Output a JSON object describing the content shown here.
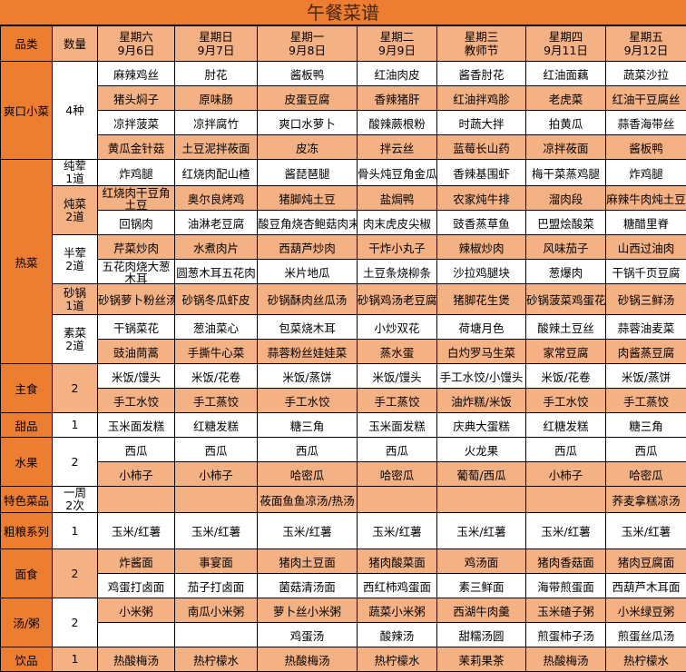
{
  "title": "午餐菜谱",
  "colors": {
    "category": "#ED7D31",
    "light": "#F4B183",
    "white": "#FFFFFF",
    "border": "#000000"
  },
  "headers": {
    "category": "品类",
    "quantity": "数量",
    "days": [
      "星期六\n9月6日",
      "星期日\n9月7日",
      "星期一\n9月8日",
      "星期二\n9月9日",
      "星期三\n教师节",
      "星期四\n9月11日",
      "星期五\n9月12日"
    ]
  },
  "sections": [
    {
      "category": "爽口小菜",
      "groups": [
        {
          "qty": "4种",
          "shade": "white",
          "rows": [
            {
              "shade": "white",
              "cells": [
                "麻辣鸡丝",
                "肘花",
                "酱板鸭",
                "红油肉皮",
                "酱香肘花",
                "红油面藕",
                "蔬菜沙拉"
              ]
            },
            {
              "shade": "light",
              "cells": [
                "猪头焖子",
                "原味肠",
                "皮蛋豆腐",
                "香辣猪肝",
                "红油拌鸡胗",
                "老虎菜",
                "红油干豆腐丝"
              ]
            },
            {
              "shade": "white",
              "cells": [
                "凉拌菠菜",
                "凉拌腐竹",
                "爽口水萝卜",
                "酸辣蕨根粉",
                "时蔬大拌",
                "拍黄瓜",
                "蒜香海带丝"
              ]
            },
            {
              "shade": "light",
              "cells": [
                "黄瓜金针菇",
                "土豆泥拌莜面",
                "皮冻",
                "拌云丝",
                "蓝莓长山药",
                "凉拌莜面",
                "酱板鸭"
              ]
            }
          ]
        }
      ]
    },
    {
      "category": "热菜",
      "groups": [
        {
          "qty": "纯荤\n1道",
          "shade": "white",
          "rows": [
            {
              "shade": "white",
              "cells": [
                "炸鸡腿",
                "红烧肉配山楂",
                "酱琵琶腿",
                "骨头炖豆角金瓜玉",
                "香辣基围虾",
                "梅干菜蒸鸡腿",
                "炸鸡腿"
              ]
            }
          ]
        },
        {
          "qty": "炖菜\n2道",
          "shade": "light",
          "rows": [
            {
              "shade": "light",
              "cells": [
                "红烧肉干豆角土豆",
                "奥尔良烤鸡",
                "猪脚炖土豆",
                "盐焗鸭",
                "农家炖牛排",
                "溜肉段",
                "麻辣牛肉炖土豆"
              ]
            },
            {
              "shade": "white",
              "cells": [
                "回锅肉",
                "油淋老豆腐",
                "酸豆角烧杏鲍菇肉末",
                "肉末虎皮尖椒",
                "豉香蒸草鱼",
                "巴盟烩酸菜",
                "糖醋里脊"
              ]
            }
          ]
        },
        {
          "qty": "半荤\n2道",
          "shade": "white",
          "rows": [
            {
              "shade": "light",
              "cells": [
                "芹菜炒肉",
                "水煮肉片",
                "西葫芦炒肉",
                "干炸小丸子",
                "辣椒炒肉",
                "风味茄子",
                "山西过油肉"
              ]
            },
            {
              "shade": "white",
              "cells": [
                "五花肉烧大葱木耳",
                "圆葱木耳五花肉",
                "米片地瓜",
                "土豆条烧柳条",
                "沙拉鸡腿块",
                "葱爆肉",
                "干锅千页豆腐"
              ]
            }
          ]
        },
        {
          "qty": "砂锅\n1道",
          "shade": "light",
          "rows": [
            {
              "shade": "light",
              "cells": [
                "砂锅萝卜粉丝汤",
                "砂锅冬瓜虾皮",
                "砂锅酥肉丝瓜汤",
                "砂锅鸡汤老豆腐",
                "猪脚花生煲",
                "砂锅菠菜鸡蛋花",
                "砂锅三鲜汤"
              ]
            }
          ]
        },
        {
          "qty": "素菜\n2道",
          "shade": "white",
          "rows": [
            {
              "shade": "white",
              "cells": [
                "干锅菜花",
                "葱油菜心",
                "包菜烧木耳",
                "小炒双花",
                "荷塘月色",
                "酸辣土豆丝",
                "蒜蓉油麦菜"
              ]
            },
            {
              "shade": "light",
              "cells": [
                "豉油茼蒿",
                "手撕牛心菜",
                "蒜蓉粉丝娃娃菜",
                "蒸水蛋",
                "白灼罗马生菜",
                "家常豆腐",
                "肉酱蒸豆腐"
              ]
            }
          ]
        }
      ]
    },
    {
      "category": "主食",
      "groups": [
        {
          "qty": "2",
          "shade": "light",
          "rows": [
            {
              "shade": "white",
              "cells": [
                "米饭/馒头",
                "米饭/花卷",
                "米饭/蒸饼",
                "米饭/馒头",
                "手工水饺/小馒头",
                "米饭/花卷",
                "米饭/蒸饼"
              ]
            },
            {
              "shade": "light",
              "cells": [
                "手工水饺",
                "手工蒸饺",
                "手工水饺",
                "手工蒸饺",
                "油炸糕/米饭",
                "手工水饺",
                "手工蒸饺"
              ]
            }
          ]
        }
      ]
    },
    {
      "category": "甜品",
      "groups": [
        {
          "qty": "1",
          "shade": "white",
          "rows": [
            {
              "shade": "white",
              "cells": [
                "玉米面发糕",
                "红糖发糕",
                "糖三角",
                "玉米面发糕",
                "庆典大蛋糕",
                "红糖发糕",
                "糖三角"
              ]
            }
          ]
        }
      ]
    },
    {
      "category": "水果",
      "groups": [
        {
          "qty": "2",
          "shade": "white",
          "rows": [
            {
              "shade": "white",
              "cells": [
                "西瓜",
                "西瓜",
                "西瓜",
                "西瓜",
                "火龙果",
                "西瓜",
                "西瓜"
              ]
            },
            {
              "shade": "light",
              "cells": [
                "小柿子",
                "小柿子",
                "哈密瓜",
                "哈密瓜",
                "葡萄/西瓜",
                "小柿子",
                "哈密瓜"
              ]
            }
          ]
        }
      ]
    },
    {
      "category": "特色菜品",
      "groups": [
        {
          "qty": "一周\n2次",
          "shade": "white",
          "rows": [
            {
              "shade": "light",
              "cells": [
                "",
                "",
                "莜面鱼鱼凉汤/热汤",
                "",
                "",
                "",
                "荞麦拿糕凉汤"
              ]
            }
          ]
        }
      ]
    },
    {
      "category": "粗粮系列",
      "groups": [
        {
          "qty": "1",
          "shade": "white",
          "rows": [
            {
              "shade": "white",
              "cells": [
                "玉米/红薯",
                "玉米/红薯",
                "玉米/红薯",
                "玉米/红薯",
                "玉米/红薯",
                "玉米/红薯",
                "玉米/红薯"
              ]
            }
          ]
        }
      ]
    },
    {
      "category": "面食",
      "groups": [
        {
          "qty": "2",
          "shade": "light",
          "rows": [
            {
              "shade": "light",
              "cells": [
                "炸酱面",
                "事宴面",
                "猪肉土豆面",
                "猪肉酸菜面",
                "鸡汤面",
                "猪肉香菇面",
                "猪肉豆腐面"
              ]
            },
            {
              "shade": "white",
              "cells": [
                "鸡蛋打卤面",
                "茄子打卤面",
                "菌菇清汤面",
                "西红柿鸡蛋面",
                "素三鲜面",
                "海带煎蛋面",
                "西葫芦木耳面"
              ]
            }
          ]
        }
      ]
    },
    {
      "category": "汤/粥",
      "groups": [
        {
          "qty": "2",
          "shade": "white",
          "rows": [
            {
              "shade": "light",
              "cells": [
                "小米粥",
                "南瓜小米粥",
                "萝卜丝小米粥",
                "蔬菜小米粥",
                "西湖牛肉羹",
                "玉米碴子粥",
                "小米绿豆粥"
              ]
            },
            {
              "shade": "white",
              "cells": [
                "",
                "",
                "鸡蛋汤",
                "酸辣汤",
                "甜糯汤圆",
                "煎蛋柿子汤",
                "煎蛋丝瓜汤"
              ]
            }
          ]
        }
      ]
    },
    {
      "category": "饮品",
      "groups": [
        {
          "qty": "1",
          "shade": "light",
          "rows": [
            {
              "shade": "light",
              "cells": [
                "热酸梅汤",
                "热柠檬水",
                "热酸梅汤",
                "热柠檬水",
                "茉莉果茶",
                "热酸梅汤",
                "热柠檬水"
              ]
            }
          ]
        }
      ]
    }
  ]
}
